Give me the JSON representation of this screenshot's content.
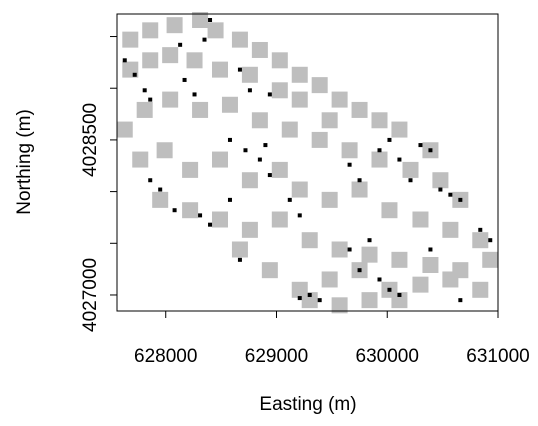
{
  "chart_data": {
    "type": "scatter",
    "x_label": "Easting (m)",
    "y_label": "Northing (m)",
    "xlim": [
      627560,
      631000
    ],
    "ylim": [
      4026845,
      4029718
    ],
    "xticks": [
      628000,
      629000,
      630000,
      631000
    ],
    "yticks": [
      4027000,
      4028500
    ],
    "yminor_ticks": [
      4027500,
      4028000,
      4029000,
      4029500
    ],
    "series": [
      {
        "color": "#bebebe",
        "marker_size": 16,
        "x": [
          627680,
          627860,
          628080,
          628310,
          628450,
          628670,
          628850,
          629030,
          629210,
          629390,
          629570,
          627680,
          627860,
          628040,
          628260,
          628490,
          628760,
          629030,
          629210,
          629480,
          629750,
          629930,
          630110,
          630390,
          627630,
          627810,
          628040,
          628310,
          628580,
          628850,
          629120,
          629390,
          629660,
          629930,
          630210,
          630480,
          630660,
          627770,
          627990,
          628220,
          628490,
          628760,
          629030,
          629210,
          629480,
          629750,
          630020,
          630300,
          630570,
          630840,
          627950,
          628220,
          628490,
          628760,
          629030,
          629300,
          629570,
          629840,
          630110,
          630390,
          630660,
          630930,
          628670,
          628940,
          629210,
          629480,
          629750,
          630020,
          630300,
          630570,
          630840,
          629300,
          629570,
          629840,
          630110
        ],
        "values": [
          4029470,
          4029560,
          4029610,
          4029660,
          4029560,
          4029470,
          4029370,
          4029270,
          4029130,
          4029030,
          4028890,
          4029180,
          4029270,
          4029320,
          4029270,
          4029180,
          4029130,
          4028980,
          4028890,
          4028690,
          4028790,
          4028690,
          4028600,
          4028400,
          4028600,
          4028790,
          4028890,
          4028790,
          4028840,
          4028690,
          4028600,
          4028500,
          4028400,
          4028310,
          4028210,
          4028110,
          4027920,
          4028310,
          4028400,
          4028210,
          4028310,
          4028110,
          4028210,
          4028020,
          4027920,
          4028020,
          4027820,
          4027730,
          4027630,
          4027530,
          4027920,
          4027820,
          4027730,
          4027630,
          4027730,
          4027530,
          4027440,
          4027390,
          4027340,
          4027290,
          4027240,
          4027340,
          4027440,
          4027240,
          4027050,
          4027150,
          4027240,
          4027050,
          4027100,
          4027150,
          4027050,
          4026950,
          4026900,
          4026950,
          4026950
        ]
      },
      {
        "color": "#000000",
        "marker_size": 4,
        "x": [
          627630,
          627720,
          627810,
          627860,
          628130,
          628170,
          628260,
          628350,
          628400,
          628670,
          628760,
          628940,
          628580,
          628720,
          628850,
          628900,
          628940,
          627860,
          627950,
          628080,
          628310,
          628400,
          628580,
          629120,
          629210,
          629660,
          629750,
          629930,
          630020,
          630110,
          630210,
          630300,
          630390,
          630480,
          630570,
          630660,
          630840,
          630930,
          629660,
          629750,
          629930,
          630020,
          630110,
          629300,
          629390,
          629210,
          628670,
          629840,
          630390,
          630660
        ],
        "values": [
          4029270,
          4029130,
          4028980,
          4028890,
          4029420,
          4029080,
          4028940,
          4029470,
          4029660,
          4029180,
          4028980,
          4028940,
          4028500,
          4028400,
          4028310,
          4028450,
          4028160,
          4028110,
          4028020,
          4027820,
          4027770,
          4027680,
          4027920,
          4027920,
          4027770,
          4028260,
          4028110,
          4028400,
          4028500,
          4028310,
          4028110,
          4028450,
          4028400,
          4028020,
          4027970,
          4027920,
          4027630,
          4027530,
          4027440,
          4027240,
          4027150,
          4027050,
          4027000,
          4027000,
          4026950,
          4026970,
          4027340,
          4027530,
          4027440,
          4026950
        ]
      }
    ]
  }
}
